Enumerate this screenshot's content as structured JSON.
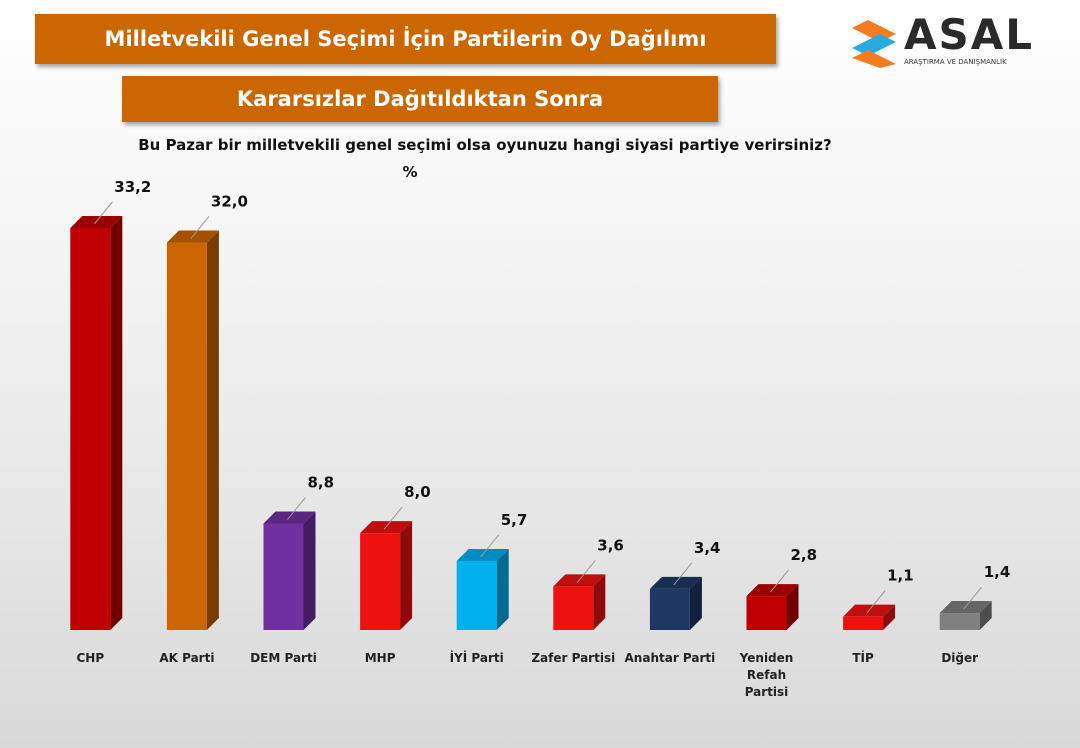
{
  "chart_data": {
    "type": "bar3d",
    "title": "Milletvekili Genel Seçimi İçin Partilerin Oy Dağılımı",
    "subtitle": "Kararsızlar Dağıtıldıktan Sonra",
    "question": "Bu Pazar bir milletvekili genel seçimi olsa oyunuzu hangi siyasi partiye verirsiniz?",
    "unit_label": "%",
    "logo": {
      "name": "ASAL",
      "tagline": "ARAŞTIRMA VE DANIŞMANLIK"
    },
    "categories": [
      "CHP",
      "AK Parti",
      "DEM Parti",
      "MHP",
      "İYİ Parti",
      "Zafer Partisi",
      "Anahtar Parti",
      "Yeniden Refah Partisi",
      "TİP",
      "Diğer"
    ],
    "values": [
      33.2,
      32.0,
      8.8,
      8.0,
      5.7,
      3.6,
      3.4,
      2.8,
      1.1,
      1.4
    ],
    "value_labels": [
      "33,2",
      "32,0",
      "8,8",
      "8,0",
      "5,7",
      "3,6",
      "3,4",
      "2,8",
      "1,1",
      "1,4"
    ],
    "colors": [
      "#c00000",
      "#cc6600",
      "#7030a0",
      "#ee1111",
      "#00b0f0",
      "#ee1111",
      "#1f3864",
      "#c00000",
      "#ee1111",
      "#808080"
    ]
  }
}
